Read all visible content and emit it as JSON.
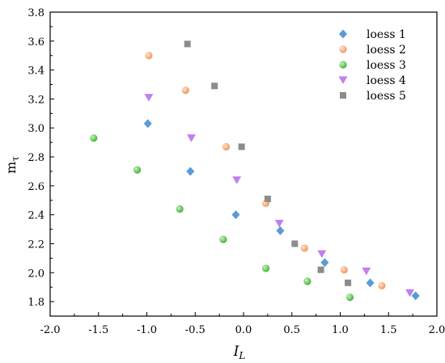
{
  "chart_data": {
    "type": "scatter",
    "xlabel": "I",
    "xlabel_sub": "L",
    "ylabel": "m",
    "ylabel_sub": "τ",
    "xlim": [
      -2.0,
      2.0
    ],
    "ylim": [
      1.7,
      3.8
    ],
    "xticks": [
      -2.0,
      -1.5,
      -1.0,
      -0.5,
      0.0,
      0.5,
      1.0,
      1.5,
      2.0
    ],
    "xtick_labels": [
      "-2.0",
      "-1.5",
      "-1.0",
      "-0.5",
      "0.0",
      "0.5",
      "1.0",
      "1.5",
      "2.0"
    ],
    "yticks": [
      1.8,
      2.0,
      2.2,
      2.4,
      2.6,
      2.8,
      3.0,
      3.2,
      3.4,
      3.6,
      3.8
    ],
    "ytick_labels": [
      "1.8",
      "2.0",
      "2.2",
      "2.4",
      "2.6",
      "2.8",
      "3.0",
      "3.2",
      "3.4",
      "3.6",
      "3.8"
    ],
    "grid": false,
    "legend_position": "top-right",
    "series": [
      {
        "name": "loess 1",
        "marker": "diamond",
        "color": "#5b9bd5",
        "points": [
          [
            -0.99,
            3.03
          ],
          [
            -0.55,
            2.7
          ],
          [
            -0.08,
            2.4
          ],
          [
            0.38,
            2.29
          ],
          [
            0.84,
            2.07
          ],
          [
            1.31,
            1.93
          ],
          [
            1.78,
            1.84
          ]
        ]
      },
      {
        "name": "loess 2",
        "marker": "sphere",
        "color": "#f4a06b",
        "points": [
          [
            -0.98,
            3.5
          ],
          [
            -0.6,
            3.26
          ],
          [
            -0.18,
            2.87
          ],
          [
            0.23,
            2.48
          ],
          [
            0.63,
            2.17
          ],
          [
            1.04,
            2.02
          ],
          [
            1.43,
            1.91
          ]
        ]
      },
      {
        "name": "loess 3",
        "marker": "sphere",
        "color": "#5cc14e",
        "points": [
          [
            -1.55,
            2.93
          ],
          [
            -1.1,
            2.71
          ],
          [
            -0.66,
            2.44
          ],
          [
            -0.21,
            2.23
          ],
          [
            0.23,
            2.03
          ],
          [
            0.66,
            1.94
          ],
          [
            1.1,
            1.83
          ]
        ]
      },
      {
        "name": "loess 4",
        "marker": "triangle-down",
        "color": "#c27ff0",
        "points": [
          [
            -0.98,
            3.21
          ],
          [
            -0.54,
            2.93
          ],
          [
            -0.07,
            2.64
          ],
          [
            0.37,
            2.34
          ],
          [
            0.81,
            2.13
          ],
          [
            1.27,
            2.01
          ],
          [
            1.72,
            1.86
          ]
        ]
      },
      {
        "name": "loess 5",
        "marker": "square",
        "color": "#8c8c8c",
        "points": [
          [
            -0.58,
            3.58
          ],
          [
            -0.3,
            3.29
          ],
          [
            -0.02,
            2.87
          ],
          [
            0.25,
            2.51
          ],
          [
            0.53,
            2.2
          ],
          [
            0.8,
            2.02
          ],
          [
            1.08,
            1.93
          ]
        ]
      }
    ]
  }
}
